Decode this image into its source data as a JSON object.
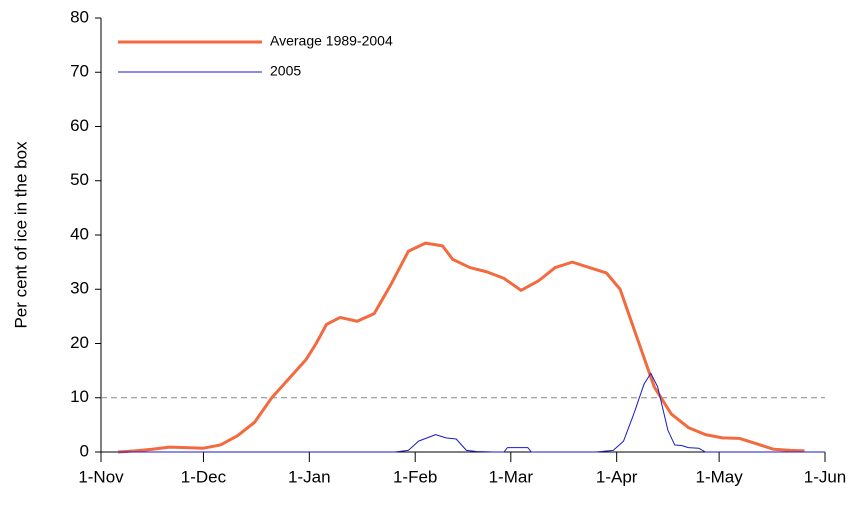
{
  "chart_data": {
    "type": "line",
    "y_label": "Per cent of ice in the box",
    "x": [
      5,
      10,
      15,
      20,
      25,
      30,
      35,
      40,
      45,
      50,
      55,
      60,
      63,
      66,
      70,
      75,
      80,
      85,
      90,
      95,
      100,
      103,
      108,
      113,
      118,
      123,
      128,
      133,
      138,
      143,
      148,
      152,
      157,
      162,
      167,
      172,
      177,
      182,
      187,
      192,
      197,
      202,
      206
    ],
    "series": [
      {
        "name": "Average 1989-2004",
        "color": "#f26a3d",
        "width": 3,
        "x": [
          5,
          10,
          15,
          20,
          25,
          30,
          35,
          40,
          45,
          50,
          55,
          60,
          63,
          66,
          70,
          75,
          80,
          85,
          90,
          95,
          100,
          103,
          108,
          113,
          118,
          123,
          128,
          133,
          138,
          143,
          148,
          152,
          157,
          162,
          167,
          172,
          177,
          182,
          187,
          192,
          197,
          202,
          206
        ],
        "values": [
          0,
          0.2,
          0.5,
          0.9,
          0.8,
          0.7,
          1.3,
          3,
          5.5,
          10,
          13.5,
          17,
          20,
          23.5,
          24.8,
          24.1,
          25.5,
          31,
          37,
          38.5,
          38,
          35.5,
          34,
          33.2,
          32,
          29.8,
          31.5,
          34,
          35,
          34,
          33,
          30,
          21,
          12,
          7,
          4.5,
          3.2,
          2.6,
          2.5,
          1.5,
          0.5,
          0.3,
          0.2
        ]
      },
      {
        "name": "2005",
        "color": "#1a1acc",
        "width": 1,
        "x": [
          5,
          86,
          90,
          93,
          98,
          101,
          104,
          107,
          110,
          115,
          118,
          119,
          125,
          126,
          145,
          150,
          153,
          156,
          159,
          161,
          163,
          166,
          168,
          170,
          172,
          175,
          177,
          212
        ],
        "values": [
          0,
          0,
          0.3,
          2,
          3.2,
          2.6,
          2.4,
          0.3,
          0.1,
          0,
          0,
          0.8,
          0.8,
          0,
          0,
          0.3,
          2,
          7,
          12.5,
          14.5,
          12,
          4,
          1.3,
          1.2,
          0.8,
          0.7,
          0,
          0
        ]
      }
    ],
    "xlim": [
      0,
      212
    ],
    "xticks": [
      {
        "value": 0,
        "label": "1-Nov"
      },
      {
        "value": 30,
        "label": "1-Dec"
      },
      {
        "value": 61,
        "label": "1-Jan"
      },
      {
        "value": 92,
        "label": "1-Feb"
      },
      {
        "value": 120,
        "label": "1-Mar"
      },
      {
        "value": 151,
        "label": "1-Apr"
      },
      {
        "value": 181,
        "label": "1-May"
      },
      {
        "value": 212,
        "label": "1-Jun"
      }
    ],
    "ylim": [
      0,
      80
    ],
    "yticks": [
      0,
      10,
      20,
      30,
      40,
      50,
      60,
      70,
      80
    ],
    "reference_line": 10,
    "legend": "upper left"
  }
}
